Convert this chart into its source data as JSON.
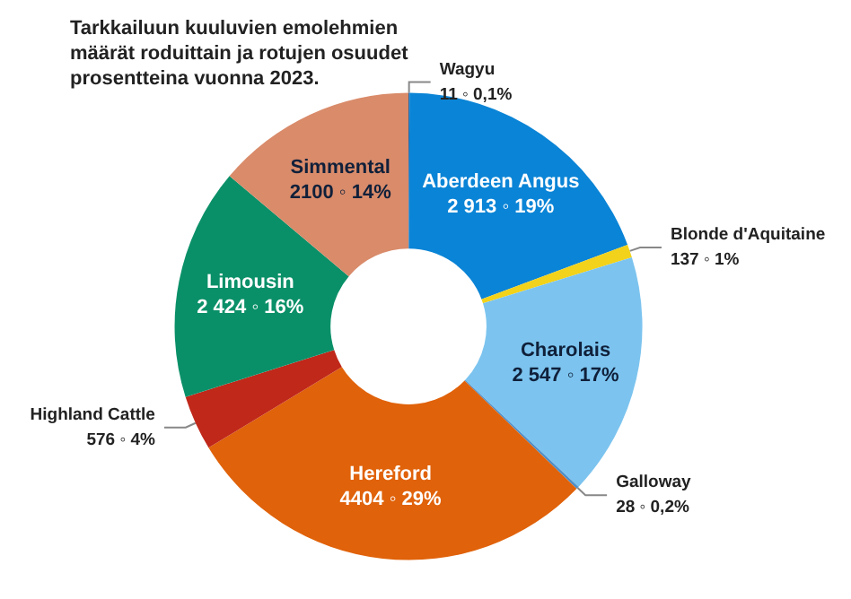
{
  "chart_data": {
    "type": "donut",
    "title": "Tarkkailuun kuuluvien emolehmien määrät roduittain ja rotujen osuudet prosentteina vuonna 2023.",
    "categories": [
      "Wagyu",
      "Aberdeen Angus",
      "Blonde d'Aquitaine",
      "Charolais",
      "Galloway",
      "Hereford",
      "Highland Cattle",
      "Limousin",
      "Simmental"
    ],
    "values": [
      11,
      2913,
      137,
      2547,
      28,
      4404,
      576,
      2424,
      2100
    ],
    "value_labels": [
      "11 ◦ 0,1%",
      "2 913 ◦ 19%",
      "137 ◦ 1%",
      "2 547 ◦ 17%",
      "28 ◦ 0,2%",
      "4404 ◦ 29%",
      "576 ◦ 4%",
      "2 424 ◦ 16%",
      "2100 ◦ 14%"
    ],
    "colors": [
      "#1f5f9e",
      "#0a84d6",
      "#f2d21a",
      "#7cc4ef",
      "#4f8fc8",
      "#e0620a",
      "#c0281a",
      "#0a9068",
      "#d98b6a"
    ],
    "legend": false
  }
}
